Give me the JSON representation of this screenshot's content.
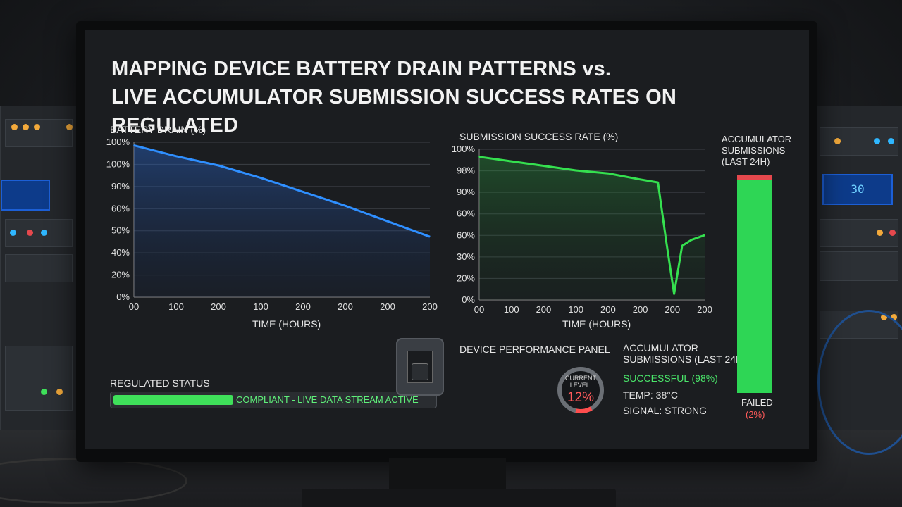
{
  "title_line1": "MAPPING DEVICE BATTERY DRAIN PATTERNS vs.",
  "title_line2": "LIVE ACCUMULATOR SUBMISSION SUCCESS RATES ON REGULATED",
  "chart_data": [
    {
      "type": "line",
      "ylabel": "BATTERY DRAIN (%)",
      "xlabel": "TIME (HOURS)",
      "y_tick_labels": [
        "100%",
        "100%",
        "90%",
        "60%",
        "50%",
        "40%",
        "20%",
        "0%"
      ],
      "x_tick_labels": [
        "00",
        "100",
        "200",
        "100",
        "200",
        "200",
        "200",
        "200"
      ],
      "x": [
        0,
        1,
        2,
        3,
        4,
        5,
        6,
        7
      ],
      "series": [
        {
          "values": [
            98,
            91,
            85,
            77,
            68,
            59,
            49,
            39
          ]
        }
      ],
      "color": "#2f8fff",
      "grid": true
    },
    {
      "type": "line",
      "ylabel": "SUBMISSION SUCCESS RATE (%)",
      "xlabel": "TIME (HOURS)",
      "y_tick_labels": [
        "100%",
        "98%",
        "90%",
        "60%",
        "60%",
        "30%",
        "20%",
        "0%"
      ],
      "x_tick_labels": [
        "00",
        "100",
        "200",
        "100",
        "200",
        "200",
        "200",
        "200"
      ],
      "x": [
        0,
        1,
        2,
        3,
        4,
        5,
        5.55,
        5.8,
        6.05,
        6.3,
        6.6,
        7
      ],
      "series": [
        {
          "values": [
            95,
            92,
            89,
            86,
            84,
            80,
            78,
            40,
            4,
            36,
            40,
            43
          ]
        }
      ],
      "color": "#35e04f",
      "grid": true
    }
  ],
  "regulated": {
    "label": "REGULATED STATUS",
    "status_text": "COMPLIANT - LIVE DATA STREAM ACTIVE"
  },
  "panel": {
    "title": "DEVICE PERFORMANCE PANEL",
    "gauge_label_line1": "CURRENT",
    "gauge_label_line2": "LEVEL:",
    "gauge_value": "12%",
    "gauge_level": 0.12,
    "acc_title_line1": "ACCUMULATOR",
    "acc_title_line2": "SUBMISSIONS (LAST 24H)",
    "successful": "SUCCESSFUL (98%)",
    "temp": "TEMP: 38°C",
    "signal": "SIGNAL: STRONG"
  },
  "acc_bar": {
    "title_line1": "ACCUMULATOR",
    "title_line2": "SUBMISSIONS",
    "title_line3": "(LAST 24H)",
    "failed_label": "FAILED",
    "failed_pct": "(2%)",
    "success_fraction": 0.98,
    "success_color": "#2ed655",
    "fail_color": "#e5484d"
  },
  "rack_display": "30"
}
